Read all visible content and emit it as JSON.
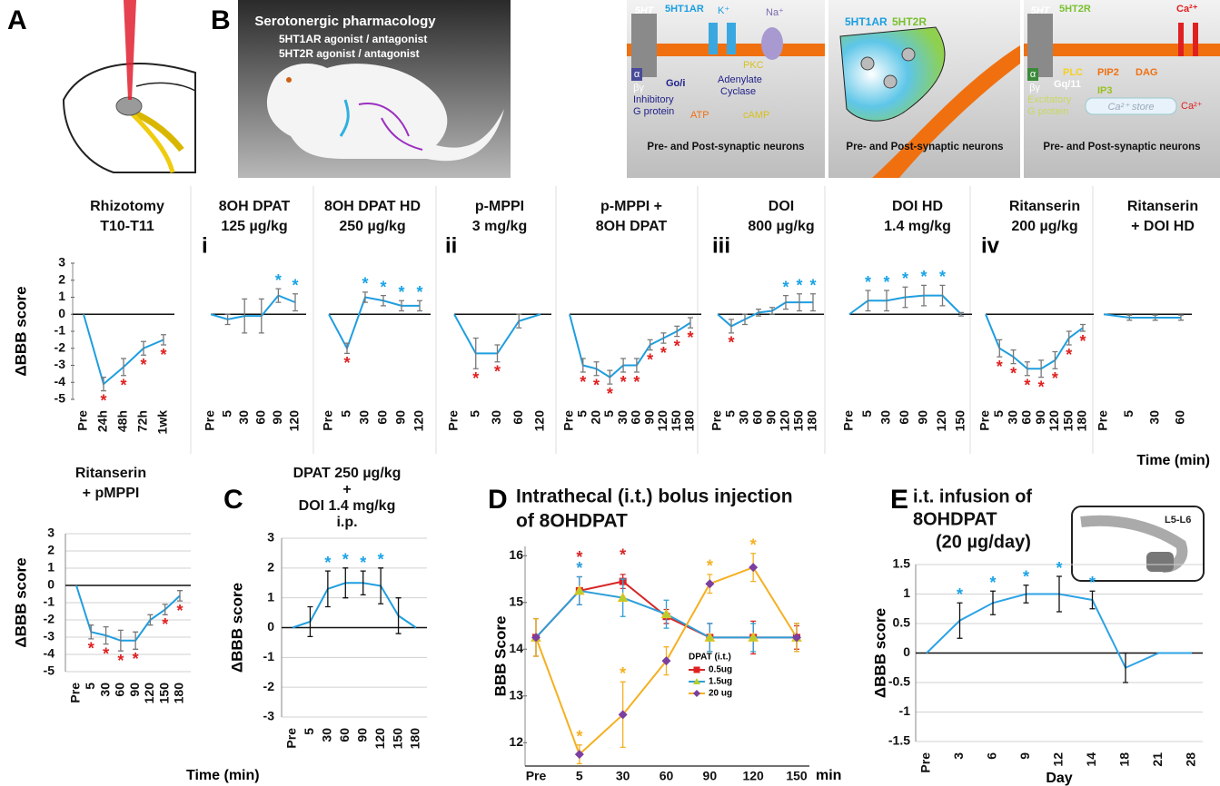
{
  "panel_labels": [
    "A",
    "B",
    "C",
    "D",
    "E"
  ],
  "header": {
    "title": "Serotonergic pharmacology",
    "line1": "5HT1AR agonist / antagonist",
    "line2": "5HT2R agonist / antagonist"
  },
  "diagram_1": {
    "ligand": "5HT",
    "receptor": "5HT1AR",
    "k": "K⁺",
    "na": "Na⁺",
    "g": "Go/i",
    "alpha": "α",
    "betagamma": "βγ",
    "g_label": [
      "Inhibitory",
      "G protein"
    ],
    "enzyme": [
      "Adenylate",
      "Cyclase"
    ],
    "pkc": "PKC",
    "atp": "ATP",
    "camp": "cAMP",
    "footer": "Pre- and Post-synaptic neurons"
  },
  "diagram_2": {
    "r1": "5HT1AR",
    "r2": "5HT2R",
    "footer": "Pre- and Post-synaptic neurons"
  },
  "diagram_3": {
    "ligand": "5HT",
    "receptor": "5HT2R",
    "alpha": "α",
    "betagamma": "βγ",
    "g": "Gq/11",
    "plc": "PLC",
    "pip2": "PIP2",
    "dag": "DAG",
    "ip3": "IP3",
    "g_label": [
      "Excitatory",
      "G protein"
    ],
    "store": "Ca²⁺ store",
    "ca1": "Ca²⁺",
    "ca2": "Ca²⁺",
    "footer": "Pre- and Post-synaptic neurons"
  },
  "inset_e": "L5-L6",
  "chart_data": [
    {
      "type": "line",
      "title": [
        "Rhizotomy",
        "T10-T11"
      ],
      "ylabel": "ΔBBB score",
      "categories": [
        "Pre",
        "24h",
        "48h",
        "72h",
        "1wk"
      ],
      "series": [
        {
          "color": "#1f9ee0",
          "error_color": "#777777",
          "values": [
            0,
            -4.1,
            -3.1,
            -2.0,
            -1.5
          ],
          "errors": [
            0,
            0.4,
            0.5,
            0.4,
            0.3
          ],
          "stars": [
            null,
            "*",
            "*",
            "*",
            "*"
          ]
        }
      ],
      "ylim": [
        -5,
        3
      ],
      "yticks": [
        3,
        2,
        1,
        0,
        -1,
        -2,
        -3,
        -4,
        -5
      ],
      "zero_line": true
    },
    {
      "type": "line",
      "roman": "i",
      "title": [
        "8OH DPAT",
        "125 µg/kg"
      ],
      "categories": [
        "Pre",
        "5",
        "30",
        "60",
        "90",
        "120"
      ],
      "series": [
        {
          "color": "#1f9ee0",
          "error_color": "#777777",
          "values": [
            0,
            -0.3,
            -0.1,
            -0.1,
            1.1,
            0.7
          ],
          "errors": [
            0,
            0.3,
            1.0,
            1.0,
            0.4,
            0.5
          ],
          "stars": [
            null,
            null,
            null,
            null,
            "*",
            "*"
          ]
        }
      ],
      "ylim": [
        -5,
        3
      ],
      "zero_line": true
    },
    {
      "type": "line",
      "title": [
        "8OH DPAT HD",
        "250 µg/kg"
      ],
      "categories": [
        "Pre",
        "5",
        "30",
        "60",
        "90",
        "120"
      ],
      "series": [
        {
          "color": "#1f9ee0",
          "error_color": "#777777",
          "values": [
            0,
            -2.0,
            1.0,
            0.8,
            0.5,
            0.5
          ],
          "errors": [
            0,
            0.3,
            0.3,
            0.3,
            0.3,
            0.3
          ],
          "stars": [
            null,
            "*",
            "*",
            "*",
            "*",
            "*"
          ]
        }
      ],
      "ylim": [
        -5,
        3
      ],
      "zero_line": true
    },
    {
      "type": "line",
      "roman": "ii",
      "title": [
        "p-MPPI",
        "3 mg/kg"
      ],
      "categories": [
        "Pre",
        "5",
        "30",
        "60",
        "120"
      ],
      "series": [
        {
          "color": "#1f9ee0",
          "error_color": "#777777",
          "values": [
            0,
            -2.3,
            -2.3,
            -0.4,
            0
          ],
          "errors": [
            0,
            0.9,
            0.5,
            0.4,
            0
          ],
          "stars": [
            null,
            "*",
            "*",
            null,
            null
          ]
        }
      ],
      "ylim": [
        -5,
        3
      ],
      "zero_line": true
    },
    {
      "type": "line",
      "title": [
        "p-MPPI +",
        "8OH DPAT"
      ],
      "categories": [
        "Pre",
        "5",
        "20",
        "5",
        "30",
        "60",
        "90",
        "120",
        "150",
        "180"
      ],
      "series": [
        {
          "color": "#1f9ee0",
          "error_color": "#777777",
          "values": [
            0,
            -3.0,
            -3.2,
            -3.7,
            -3.0,
            -3.0,
            -1.8,
            -1.4,
            -1.0,
            -0.5
          ],
          "errors": [
            0,
            0.4,
            0.4,
            0.4,
            0.4,
            0.4,
            0.3,
            0.3,
            0.3,
            0.3
          ],
          "stars": [
            null,
            "*",
            "*",
            "*",
            "*",
            "*",
            "*",
            "*",
            "*",
            "*"
          ]
        }
      ],
      "ylim": [
        -5,
        3
      ],
      "zero_line": true
    },
    {
      "type": "line",
      "roman": "iii",
      "title": [
        "DOI",
        "800 µg/kg"
      ],
      "categories": [
        "Pre",
        "5",
        "30",
        "60",
        "90",
        "120",
        "150",
        "180"
      ],
      "series": [
        {
          "color": "#1f9ee0",
          "error_color": "#777777",
          "values": [
            0,
            -0.7,
            -0.3,
            0.1,
            0.2,
            0.7,
            0.7,
            0.7
          ],
          "errors": [
            0,
            0.4,
            0.3,
            0.2,
            0.2,
            0.4,
            0.5,
            0.5
          ],
          "stars": [
            null,
            "*",
            null,
            null,
            null,
            "*",
            "*",
            "*"
          ]
        }
      ],
      "ylim": [
        -5,
        3
      ],
      "zero_line": true
    },
    {
      "type": "line",
      "title": [
        "DOI HD",
        "1.4 mg/kg"
      ],
      "categories": [
        "Pre",
        "5",
        "30",
        "60",
        "90",
        "120",
        "150"
      ],
      "series": [
        {
          "color": "#1f9ee0",
          "error_color": "#777777",
          "values": [
            0,
            0.8,
            0.8,
            1.0,
            1.1,
            1.1,
            0
          ],
          "errors": [
            0,
            0.6,
            0.6,
            0.6,
            0.6,
            0.6,
            0.1
          ],
          "stars": [
            null,
            "*",
            "*",
            "*",
            "*",
            "*",
            null
          ]
        }
      ],
      "ylim": [
        -5,
        3
      ],
      "zero_line": true
    },
    {
      "type": "line",
      "roman": "iv",
      "title": [
        "Ritanserin",
        "200 µg/kg"
      ],
      "categories": [
        "Pre",
        "5",
        "30",
        "60",
        "90",
        "120",
        "150",
        "180"
      ],
      "series": [
        {
          "color": "#1f9ee0",
          "error_color": "#777777",
          "values": [
            0,
            -2.0,
            -2.5,
            -3.2,
            -3.2,
            -2.7,
            -1.4,
            -0.8
          ],
          "errors": [
            0,
            0.5,
            0.4,
            0.4,
            0.5,
            0.5,
            0.4,
            0.2
          ],
          "stars": [
            null,
            "*",
            "*",
            "*",
            "*",
            "*",
            "*",
            "*"
          ]
        }
      ],
      "ylim": [
        -5,
        3
      ],
      "zero_line": true
    },
    {
      "type": "line",
      "title": [
        "Ritanserin",
        "+ DOI HD"
      ],
      "xlabel": "Time (min)",
      "categories": [
        "Pre",
        "5",
        "30",
        "60"
      ],
      "series": [
        {
          "color": "#1f9ee0",
          "error_color": "#777777",
          "values": [
            0,
            -0.2,
            -0.2,
            -0.2
          ],
          "errors": [
            0,
            0.15,
            0.15,
            0.15
          ]
        }
      ],
      "ylim": [
        -5,
        3
      ],
      "zero_line": true
    },
    {
      "type": "line",
      "title": [
        "Ritanserin",
        "+ pMPPI"
      ],
      "ylabel": "ΔBBB score",
      "xlabel": "Time (min)",
      "categories": [
        "Pre",
        "5",
        "30",
        "60",
        "90",
        "120",
        "150",
        "180"
      ],
      "series": [
        {
          "color": "#1f9ee0",
          "error_color": "#777777",
          "values": [
            0,
            -2.7,
            -2.9,
            -3.2,
            -3.2,
            -2.0,
            -1.4,
            -0.6
          ],
          "errors": [
            0,
            0.4,
            0.5,
            0.6,
            0.5,
            0.3,
            0.3,
            0.3
          ],
          "stars": [
            null,
            "*",
            "*",
            "*",
            "*",
            null,
            "*",
            "*"
          ]
        }
      ],
      "ylim": [
        -5,
        3
      ],
      "yticks": [
        3,
        2,
        1,
        0,
        -1,
        -2,
        -3,
        -4,
        -5
      ],
      "grid": true,
      "zero_line": true
    },
    {
      "type": "line",
      "title": [
        "DPAT 250 µg/kg",
        "+",
        "DOI 1.4 mg/kg",
        "i.p."
      ],
      "ylabel": "ΔBBB score",
      "categories": [
        "Pre",
        "5",
        "30",
        "60",
        "90",
        "120",
        "150",
        "180"
      ],
      "series": [
        {
          "color": "#1f9ee0",
          "error_color": "#111111",
          "values": [
            0,
            0.2,
            1.3,
            1.5,
            1.5,
            1.4,
            0.4,
            0
          ],
          "errors": [
            0,
            0.5,
            0.6,
            0.5,
            0.4,
            0.6,
            0.6,
            0
          ],
          "stars": [
            null,
            null,
            "*",
            "*",
            "*",
            "*",
            null,
            null
          ]
        }
      ],
      "ylim": [
        -3,
        3
      ],
      "yticks": [
        3,
        2,
        1,
        0,
        -1,
        -2,
        -3
      ],
      "grid": true,
      "zero_line": true
    },
    {
      "type": "line",
      "title": [
        "Intrathecal (i.t.) bolus injection",
        "of 8OHDPAT"
      ],
      "ylabel": "BBB Score",
      "xlabel": "min",
      "legend_title": "DPAT (i.t.)",
      "categories": [
        "Pre",
        "5",
        "30",
        "60",
        "90",
        "120",
        "150"
      ],
      "series": [
        {
          "name": "0.5ug",
          "color": "#d62728",
          "error_color": "#d62728",
          "marker": "square",
          "marker_color": "#e02020",
          "star_color": "#d62728",
          "values": [
            14.25,
            15.25,
            15.45,
            14.7,
            14.25,
            14.25,
            14.25
          ],
          "errors": [
            0.4,
            0.3,
            0.15,
            0.15,
            0.3,
            0.35,
            0.25
          ],
          "stars": [
            null,
            "*",
            "*",
            null,
            null,
            null,
            null
          ]
        },
        {
          "name": "1.5ug",
          "color": "#2f9fd8",
          "error_color": "#2f9fd8",
          "marker": "triangle",
          "marker_color": "#b5cf2c",
          "star_color": "#2f9fd8",
          "values": [
            14.25,
            15.25,
            15.1,
            14.75,
            14.25,
            14.25,
            14.25
          ],
          "errors": [
            0.4,
            0.3,
            0.4,
            0.3,
            0.3,
            0.3,
            0.3
          ],
          "stars": [
            null,
            "*",
            null,
            null,
            null,
            null,
            null
          ]
        },
        {
          "name": "20 ug",
          "color": "#f5b021",
          "error_color": "#f5b021",
          "marker": "diamond",
          "marker_color": "#7b3fa0",
          "star_color": "#f5b021",
          "values": [
            14.25,
            11.75,
            12.6,
            13.75,
            15.4,
            15.75,
            14.25
          ],
          "errors": [
            0.4,
            0.2,
            0.7,
            0.3,
            0.2,
            0.3,
            0.3
          ],
          "stars": [
            null,
            "*",
            "*",
            null,
            "*",
            "*",
            null
          ]
        }
      ],
      "ylim": [
        11.5,
        16.2
      ],
      "yticks": [
        12,
        13,
        14,
        15,
        16
      ]
    },
    {
      "type": "line",
      "title": [
        "i.t. infusion of",
        "8OHDPAT",
        "(20 µg/day)"
      ],
      "ylabel": "ΔBBB score",
      "xlabel": "Day",
      "categories": [
        "Pre",
        "3",
        "6",
        "9",
        "12",
        "14",
        "18",
        "21",
        "28"
      ],
      "series": [
        {
          "color": "#2ea3e6",
          "error_color": "#111111",
          "values": [
            0,
            0.55,
            0.85,
            1.0,
            1.0,
            0.9,
            -0.25,
            0,
            0
          ],
          "errors": [
            0,
            0.3,
            0.2,
            0.15,
            0.3,
            0.15,
            0.25,
            0,
            0
          ],
          "stars": [
            null,
            "*",
            "*",
            "*",
            "*",
            "*",
            null,
            null,
            null
          ]
        }
      ],
      "ylim": [
        -1.5,
        1.5
      ],
      "yticks": [
        1.5,
        1,
        0.5,
        0,
        -0.5,
        -1,
        -1.5
      ],
      "grid": true,
      "zero_line": true
    }
  ]
}
